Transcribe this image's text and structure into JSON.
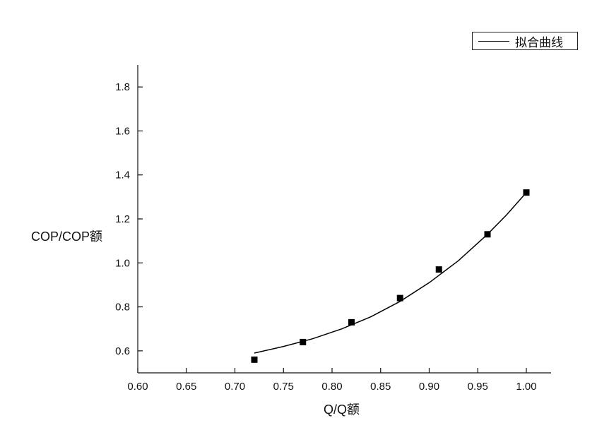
{
  "chart_data": {
    "type": "scatter",
    "title": "",
    "xlabel": "Q/Q额",
    "ylabel": "COP/COP额",
    "xlim": [
      0.6,
      1.0
    ],
    "ylim": [
      0.5,
      1.9
    ],
    "x_ticks": [
      0.6,
      0.65,
      0.7,
      0.75,
      0.8,
      0.85,
      0.9,
      0.95,
      1.0
    ],
    "x_tick_labels": [
      "0.60",
      "0.65",
      "0.70",
      "0.75",
      "0.80",
      "0.85",
      "0.90",
      "0.95",
      "1.00"
    ],
    "y_ticks": [
      0.6,
      0.8,
      1.0,
      1.2,
      1.4,
      1.6,
      1.8
    ],
    "y_tick_labels": [
      "0.6",
      "0.8",
      "1.0",
      "1.2",
      "1.4",
      "1.6",
      "1.8"
    ],
    "grid": false,
    "legend_position": "top-right",
    "series": [
      {
        "type": "scatter",
        "marker": "square",
        "color": "#000000",
        "x": [
          0.72,
          0.77,
          0.82,
          0.87,
          0.91,
          0.96,
          1.0
        ],
        "y": [
          0.56,
          0.64,
          0.73,
          0.84,
          0.97,
          1.13,
          1.32
        ]
      },
      {
        "type": "line",
        "name": "拟合曲线",
        "color": "#000000",
        "x": [
          0.72,
          0.75,
          0.78,
          0.81,
          0.84,
          0.87,
          0.9,
          0.93,
          0.96,
          0.98,
          1.0
        ],
        "y": [
          0.59,
          0.62,
          0.655,
          0.7,
          0.755,
          0.825,
          0.91,
          1.01,
          1.13,
          1.22,
          1.32
        ]
      }
    ]
  }
}
